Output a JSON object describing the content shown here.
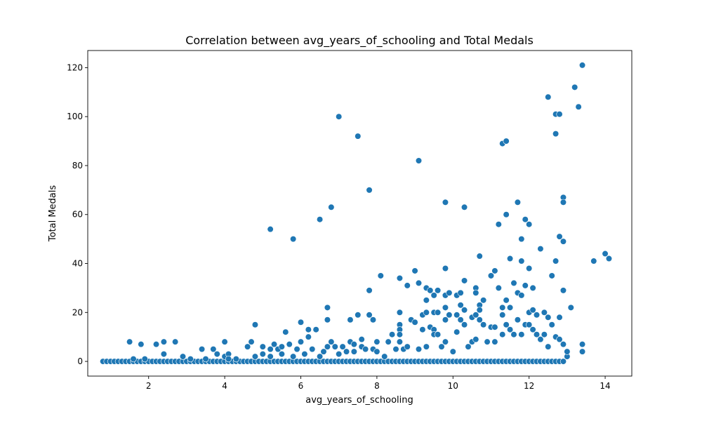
{
  "chart_data": {
    "type": "scatter",
    "title": "Correlation between avg_years_of_schooling and Total Medals",
    "xlabel": "avg_years_of_schooling",
    "ylabel": "Total Medals",
    "xlim": [
      0.4,
      14.7
    ],
    "ylim": [
      -6,
      127
    ],
    "xticks": [
      2,
      4,
      6,
      8,
      10,
      12,
      14
    ],
    "yticks": [
      0,
      20,
      40,
      60,
      80,
      100,
      120
    ],
    "grid": false,
    "marker_color": "#1f77b4",
    "marker_edge": "#ffffff",
    "points": [
      [
        0.8,
        0
      ],
      [
        0.9,
        0
      ],
      [
        1.0,
        0
      ],
      [
        1.1,
        0
      ],
      [
        1.2,
        0
      ],
      [
        1.3,
        0
      ],
      [
        1.4,
        0
      ],
      [
        1.5,
        0
      ],
      [
        1.6,
        0
      ],
      [
        1.7,
        0
      ],
      [
        1.8,
        0
      ],
      [
        1.9,
        0
      ],
      [
        2.0,
        0
      ],
      [
        2.1,
        0
      ],
      [
        2.2,
        0
      ],
      [
        2.3,
        0
      ],
      [
        2.4,
        0
      ],
      [
        2.5,
        0
      ],
      [
        2.6,
        0
      ],
      [
        2.7,
        0
      ],
      [
        2.8,
        0
      ],
      [
        2.9,
        0
      ],
      [
        3.0,
        0
      ],
      [
        3.1,
        0
      ],
      [
        3.2,
        0
      ],
      [
        3.3,
        0
      ],
      [
        3.4,
        0
      ],
      [
        3.5,
        0
      ],
      [
        3.6,
        0
      ],
      [
        3.7,
        0
      ],
      [
        3.8,
        0
      ],
      [
        3.9,
        0
      ],
      [
        4.0,
        0
      ],
      [
        4.1,
        0
      ],
      [
        4.2,
        0
      ],
      [
        4.3,
        0
      ],
      [
        4.4,
        0
      ],
      [
        4.5,
        0
      ],
      [
        4.6,
        0
      ],
      [
        4.7,
        0
      ],
      [
        4.8,
        0
      ],
      [
        4.9,
        0
      ],
      [
        5.0,
        0
      ],
      [
        5.1,
        0
      ],
      [
        5.2,
        0
      ],
      [
        5.3,
        0
      ],
      [
        5.4,
        0
      ],
      [
        5.5,
        0
      ],
      [
        5.6,
        0
      ],
      [
        5.7,
        0
      ],
      [
        5.8,
        0
      ],
      [
        5.9,
        0
      ],
      [
        6.0,
        0
      ],
      [
        6.1,
        0
      ],
      [
        6.2,
        0
      ],
      [
        6.3,
        0
      ],
      [
        6.4,
        0
      ],
      [
        6.5,
        0
      ],
      [
        6.6,
        0
      ],
      [
        6.7,
        0
      ],
      [
        6.8,
        0
      ],
      [
        6.9,
        0
      ],
      [
        7.0,
        0
      ],
      [
        7.1,
        0
      ],
      [
        7.2,
        0
      ],
      [
        7.3,
        0
      ],
      [
        7.4,
        0
      ],
      [
        7.5,
        0
      ],
      [
        7.6,
        0
      ],
      [
        7.7,
        0
      ],
      [
        7.8,
        0
      ],
      [
        7.9,
        0
      ],
      [
        8.0,
        0
      ],
      [
        8.1,
        0
      ],
      [
        8.2,
        0
      ],
      [
        8.3,
        0
      ],
      [
        8.4,
        0
      ],
      [
        8.5,
        0
      ],
      [
        8.6,
        0
      ],
      [
        8.7,
        0
      ],
      [
        8.8,
        0
      ],
      [
        8.9,
        0
      ],
      [
        9.0,
        0
      ],
      [
        9.1,
        0
      ],
      [
        9.2,
        0
      ],
      [
        9.3,
        0
      ],
      [
        9.4,
        0
      ],
      [
        9.5,
        0
      ],
      [
        9.6,
        0
      ],
      [
        9.7,
        0
      ],
      [
        9.8,
        0
      ],
      [
        9.9,
        0
      ],
      [
        10.0,
        0
      ],
      [
        10.1,
        0
      ],
      [
        10.2,
        0
      ],
      [
        10.3,
        0
      ],
      [
        10.4,
        0
      ],
      [
        10.5,
        0
      ],
      [
        10.6,
        0
      ],
      [
        10.7,
        0
      ],
      [
        10.8,
        0
      ],
      [
        10.9,
        0
      ],
      [
        11.0,
        0
      ],
      [
        11.1,
        0
      ],
      [
        11.2,
        0
      ],
      [
        11.3,
        0
      ],
      [
        11.4,
        0
      ],
      [
        11.5,
        0
      ],
      [
        11.6,
        0
      ],
      [
        11.7,
        0
      ],
      [
        11.8,
        0
      ],
      [
        11.9,
        0
      ],
      [
        12.0,
        0
      ],
      [
        12.1,
        0
      ],
      [
        12.2,
        0
      ],
      [
        12.3,
        0
      ],
      [
        12.4,
        0
      ],
      [
        12.5,
        0
      ],
      [
        12.6,
        0
      ],
      [
        12.7,
        0
      ],
      [
        12.8,
        0
      ],
      [
        12.9,
        0
      ],
      [
        13.0,
        2
      ],
      [
        1.5,
        8
      ],
      [
        1.6,
        1
      ],
      [
        1.8,
        7
      ],
      [
        1.9,
        1
      ],
      [
        2.2,
        7
      ],
      [
        2.4,
        8
      ],
      [
        2.4,
        3
      ],
      [
        2.7,
        8
      ],
      [
        2.9,
        2
      ],
      [
        3.1,
        1
      ],
      [
        3.4,
        5
      ],
      [
        3.5,
        1
      ],
      [
        3.7,
        5
      ],
      [
        3.8,
        3
      ],
      [
        4.0,
        8
      ],
      [
        4.0,
        2
      ],
      [
        4.1,
        3
      ],
      [
        4.1,
        1
      ],
      [
        4.3,
        1
      ],
      [
        4.6,
        6
      ],
      [
        4.7,
        8
      ],
      [
        4.8,
        15
      ],
      [
        4.8,
        2
      ],
      [
        5.0,
        6
      ],
      [
        5.0,
        3
      ],
      [
        5.2,
        54
      ],
      [
        5.2,
        5
      ],
      [
        5.2,
        2
      ],
      [
        5.3,
        7
      ],
      [
        5.4,
        5
      ],
      [
        5.5,
        6
      ],
      [
        5.5,
        3
      ],
      [
        5.6,
        12
      ],
      [
        5.7,
        7
      ],
      [
        5.8,
        50
      ],
      [
        5.8,
        2
      ],
      [
        5.9,
        5
      ],
      [
        6.0,
        16
      ],
      [
        6.0,
        8
      ],
      [
        6.1,
        3
      ],
      [
        6.2,
        13
      ],
      [
        6.2,
        10
      ],
      [
        6.3,
        5
      ],
      [
        6.4,
        13
      ],
      [
        6.5,
        58
      ],
      [
        6.5,
        2
      ],
      [
        6.6,
        4
      ],
      [
        6.7,
        22
      ],
      [
        6.7,
        17
      ],
      [
        6.7,
        6
      ],
      [
        6.8,
        63
      ],
      [
        6.8,
        8
      ],
      [
        6.9,
        6
      ],
      [
        7.0,
        100
      ],
      [
        7.0,
        3
      ],
      [
        7.1,
        6
      ],
      [
        7.2,
        4
      ],
      [
        7.3,
        17
      ],
      [
        7.3,
        8
      ],
      [
        7.4,
        7
      ],
      [
        7.4,
        4
      ],
      [
        7.5,
        92
      ],
      [
        7.5,
        19
      ],
      [
        7.6,
        9
      ],
      [
        7.6,
        6
      ],
      [
        7.7,
        5
      ],
      [
        7.8,
        70
      ],
      [
        7.8,
        29
      ],
      [
        7.8,
        19
      ],
      [
        7.9,
        17
      ],
      [
        7.9,
        5
      ],
      [
        8.0,
        8
      ],
      [
        8.0,
        4
      ],
      [
        8.1,
        35
      ],
      [
        8.2,
        2
      ],
      [
        8.3,
        8
      ],
      [
        8.4,
        11
      ],
      [
        8.5,
        5
      ],
      [
        8.6,
        34
      ],
      [
        8.6,
        20
      ],
      [
        8.6,
        15
      ],
      [
        8.6,
        13
      ],
      [
        8.6,
        11
      ],
      [
        8.6,
        8
      ],
      [
        8.7,
        5
      ],
      [
        8.8,
        31
      ],
      [
        8.8,
        6
      ],
      [
        8.9,
        17
      ],
      [
        9.0,
        37
      ],
      [
        9.0,
        16
      ],
      [
        9.1,
        82
      ],
      [
        9.1,
        32
      ],
      [
        9.1,
        5
      ],
      [
        9.2,
        19
      ],
      [
        9.2,
        13
      ],
      [
        9.3,
        30
      ],
      [
        9.3,
        25
      ],
      [
        9.3,
        20
      ],
      [
        9.3,
        6
      ],
      [
        9.4,
        29
      ],
      [
        9.4,
        14
      ],
      [
        9.5,
        27
      ],
      [
        9.5,
        20
      ],
      [
        9.5,
        13
      ],
      [
        9.5,
        11
      ],
      [
        9.6,
        29
      ],
      [
        9.6,
        20
      ],
      [
        9.6,
        11
      ],
      [
        9.7,
        6
      ],
      [
        9.8,
        65
      ],
      [
        9.8,
        38
      ],
      [
        9.8,
        27
      ],
      [
        9.8,
        22
      ],
      [
        9.8,
        17
      ],
      [
        9.8,
        8
      ],
      [
        9.9,
        28
      ],
      [
        9.9,
        19
      ],
      [
        10.0,
        4
      ],
      [
        10.1,
        27
      ],
      [
        10.1,
        19
      ],
      [
        10.1,
        12
      ],
      [
        10.2,
        28
      ],
      [
        10.2,
        23
      ],
      [
        10.2,
        17
      ],
      [
        10.3,
        63
      ],
      [
        10.3,
        33
      ],
      [
        10.3,
        21
      ],
      [
        10.3,
        15
      ],
      [
        10.4,
        6
      ],
      [
        10.5,
        18
      ],
      [
        10.5,
        8
      ],
      [
        10.6,
        30
      ],
      [
        10.6,
        28
      ],
      [
        10.6,
        19
      ],
      [
        10.6,
        9
      ],
      [
        10.7,
        43
      ],
      [
        10.7,
        23
      ],
      [
        10.7,
        21
      ],
      [
        10.7,
        17
      ],
      [
        10.8,
        25
      ],
      [
        10.8,
        15
      ],
      [
        10.9,
        8
      ],
      [
        11.0,
        35
      ],
      [
        11.0,
        14
      ],
      [
        11.1,
        37
      ],
      [
        11.1,
        14
      ],
      [
        11.1,
        8
      ],
      [
        11.2,
        56
      ],
      [
        11.2,
        30
      ],
      [
        11.3,
        89
      ],
      [
        11.3,
        22
      ],
      [
        11.3,
        19
      ],
      [
        11.3,
        11
      ],
      [
        11.4,
        90
      ],
      [
        11.4,
        60
      ],
      [
        11.4,
        25
      ],
      [
        11.4,
        15
      ],
      [
        11.5,
        42
      ],
      [
        11.5,
        22
      ],
      [
        11.5,
        13
      ],
      [
        11.6,
        32
      ],
      [
        11.6,
        11
      ],
      [
        11.7,
        65
      ],
      [
        11.7,
        28
      ],
      [
        11.7,
        17
      ],
      [
        11.8,
        50
      ],
      [
        11.8,
        41
      ],
      [
        11.8,
        27
      ],
      [
        11.8,
        11
      ],
      [
        11.9,
        58
      ],
      [
        11.9,
        31
      ],
      [
        11.9,
        15
      ],
      [
        12.0,
        56
      ],
      [
        12.0,
        38
      ],
      [
        12.0,
        20
      ],
      [
        12.0,
        15
      ],
      [
        12.1,
        30
      ],
      [
        12.1,
        21
      ],
      [
        12.1,
        13
      ],
      [
        12.2,
        19
      ],
      [
        12.2,
        11
      ],
      [
        12.3,
        46
      ],
      [
        12.3,
        9
      ],
      [
        12.4,
        20
      ],
      [
        12.4,
        11
      ],
      [
        12.5,
        108
      ],
      [
        12.5,
        18
      ],
      [
        12.5,
        6
      ],
      [
        12.6,
        35
      ],
      [
        12.6,
        15
      ],
      [
        12.7,
        101
      ],
      [
        12.7,
        93
      ],
      [
        12.7,
        41
      ],
      [
        12.7,
        10
      ],
      [
        12.8,
        101
      ],
      [
        12.8,
        51
      ],
      [
        12.8,
        18
      ],
      [
        12.8,
        9
      ],
      [
        12.9,
        67
      ],
      [
        12.9,
        65
      ],
      [
        12.9,
        49
      ],
      [
        12.9,
        29
      ],
      [
        12.9,
        7
      ],
      [
        13.0,
        4
      ],
      [
        13.1,
        22
      ],
      [
        13.2,
        112
      ],
      [
        13.3,
        104
      ],
      [
        13.4,
        121
      ],
      [
        13.4,
        7
      ],
      [
        13.4,
        4
      ],
      [
        13.7,
        41
      ],
      [
        14.0,
        44
      ],
      [
        14.1,
        42
      ]
    ]
  }
}
